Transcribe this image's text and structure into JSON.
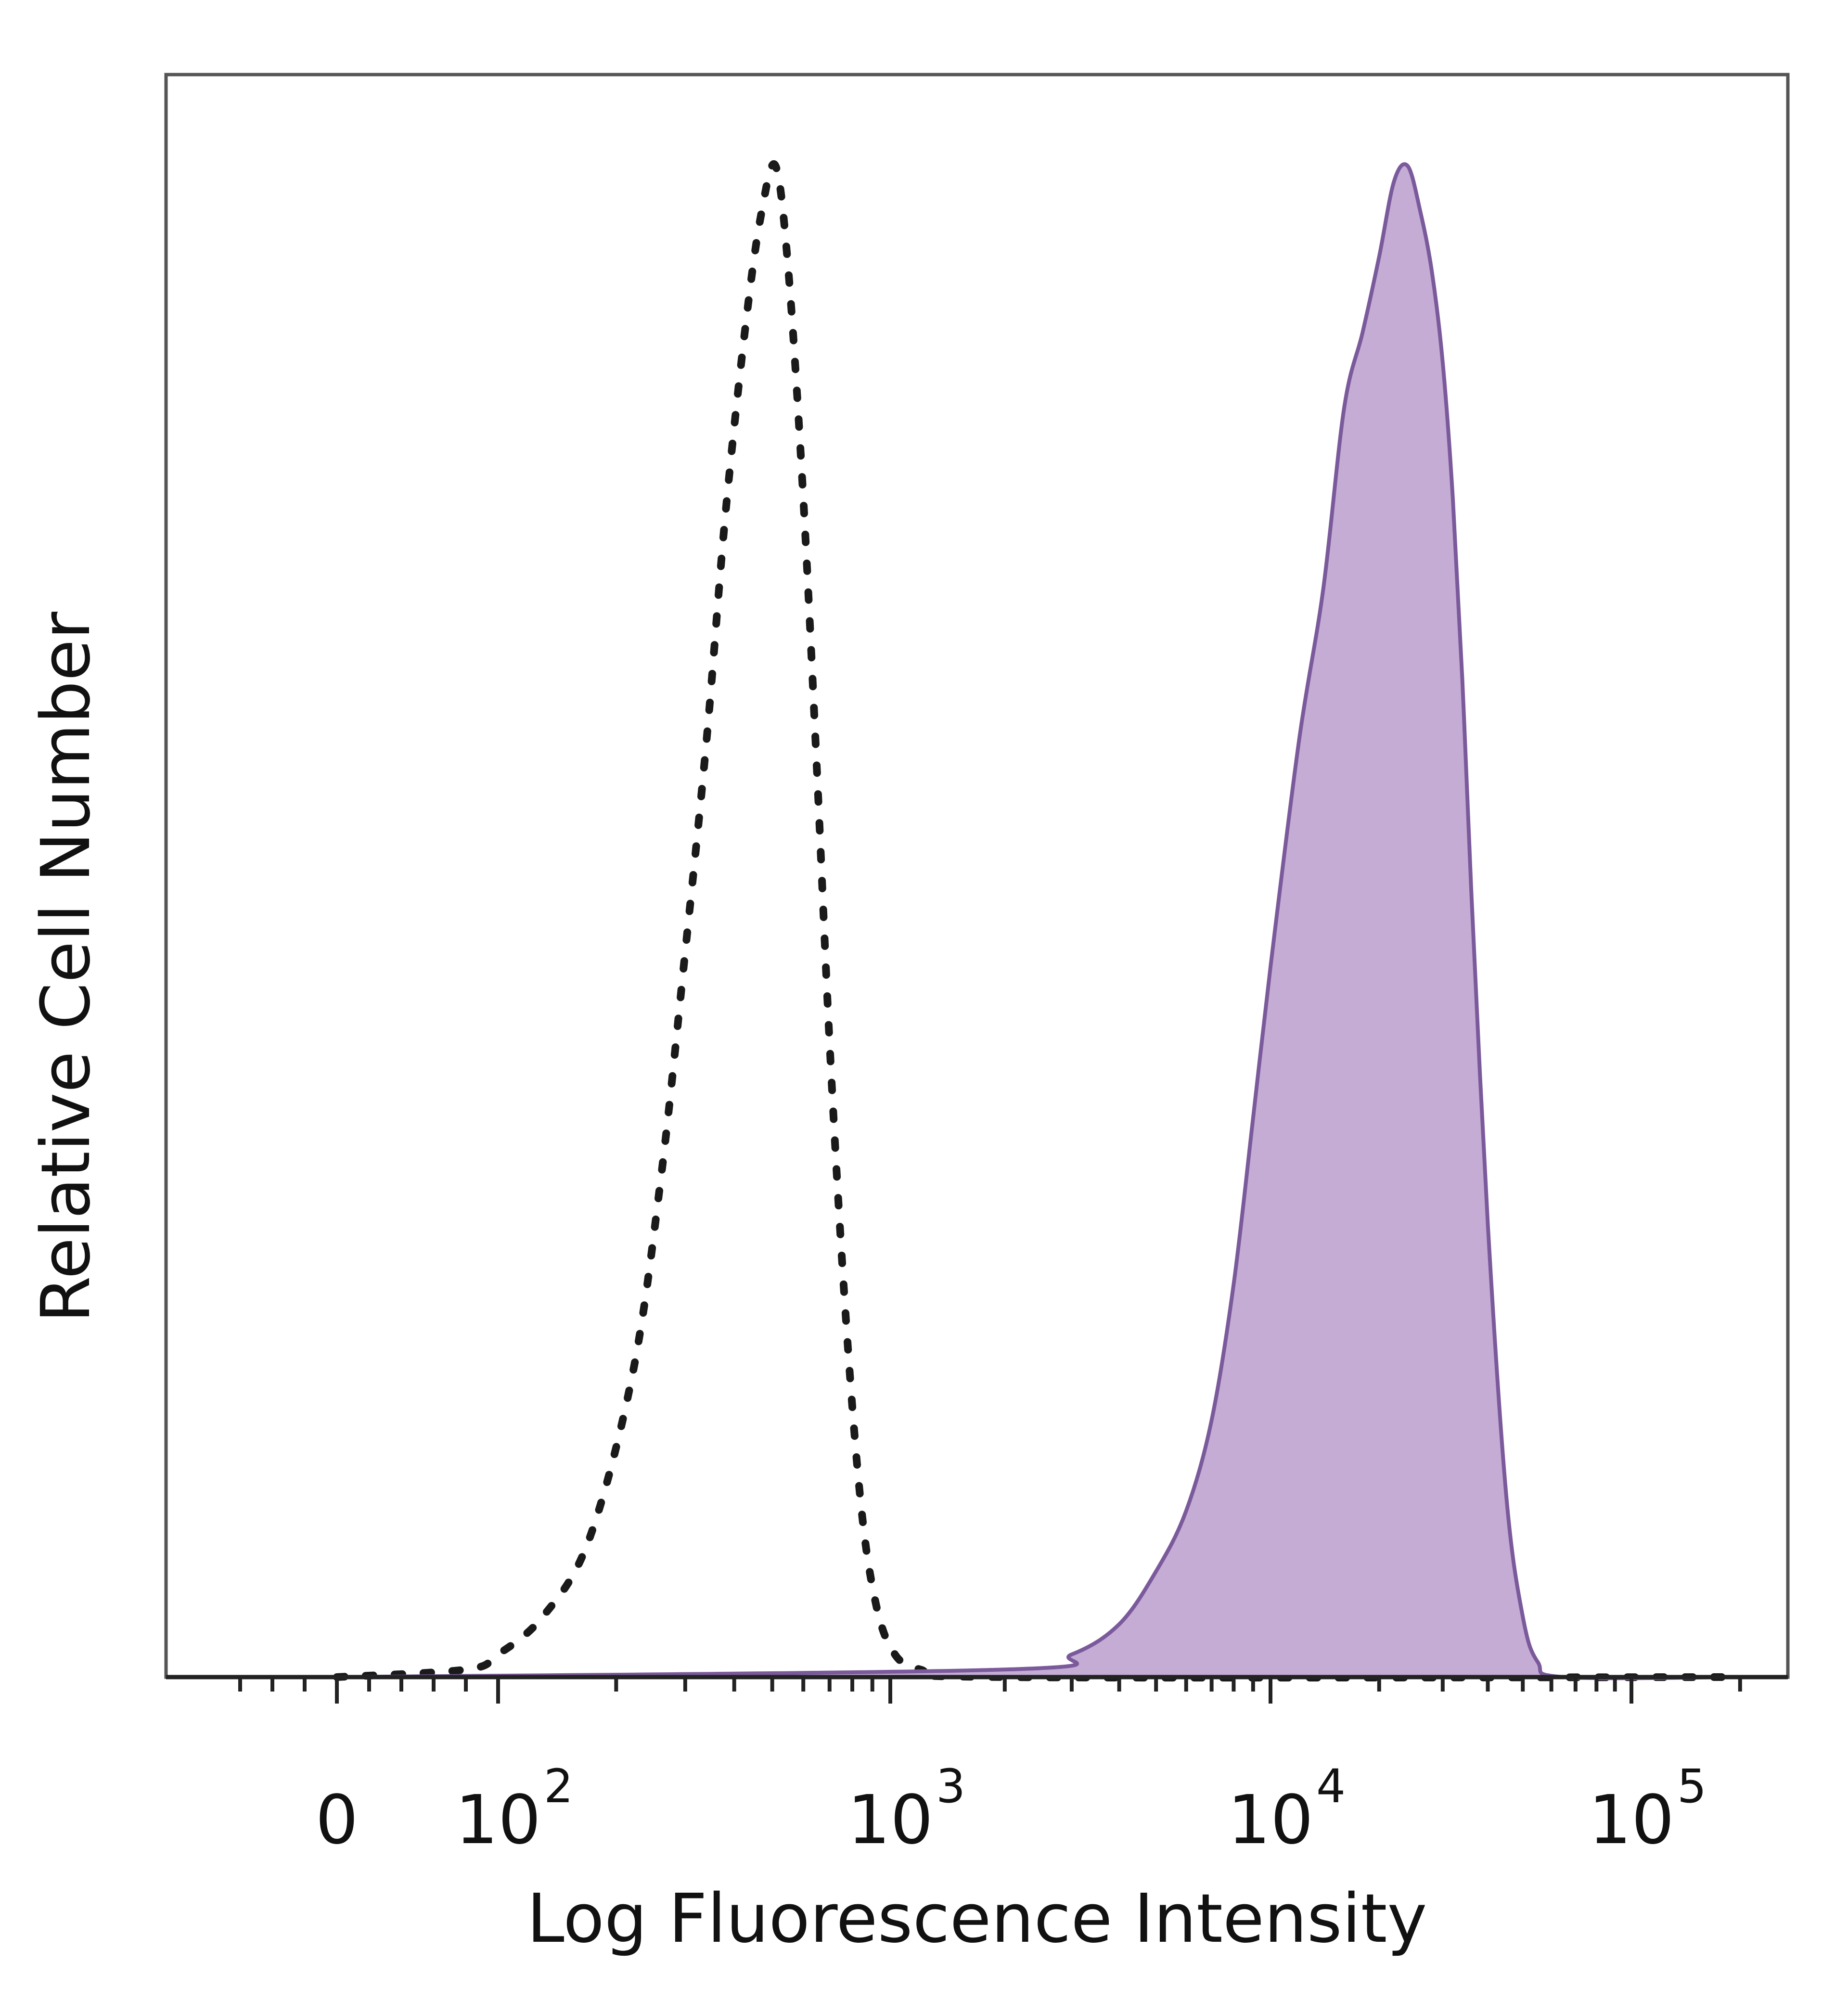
{
  "chart_data": {
    "type": "area",
    "xlabel": "Log Fluorescence Intensity",
    "ylabel": "Relative Cell Number",
    "x_scale": "biexponential",
    "x_tick_labels": [
      {
        "base": "0",
        "exp": ""
      },
      {
        "base": "10",
        "exp": "2"
      },
      {
        "base": "10",
        "exp": "3"
      },
      {
        "base": "10",
        "exp": "4"
      },
      {
        "base": "10",
        "exp": "5"
      }
    ],
    "ylim": [
      0,
      100
    ],
    "grid": false,
    "legend": "none",
    "series": [
      {
        "style": "dotted",
        "color": "#1a1a1a",
        "points": [
          {
            "x": "0",
            "y": 0
          },
          {
            "x": "80",
            "y": 0.5
          },
          {
            "x": "100",
            "y": 1.5
          },
          {
            "x": "130",
            "y": 4
          },
          {
            "x": "170",
            "y": 9
          },
          {
            "x": "220",
            "y": 20
          },
          {
            "x": "260",
            "y": 33
          },
          {
            "x": "300",
            "y": 48
          },
          {
            "x": "340",
            "y": 62
          },
          {
            "x": "380",
            "y": 77
          },
          {
            "x": "430",
            "y": 90
          },
          {
            "x": "470",
            "y": 97
          },
          {
            "x": "510",
            "y": 100
          },
          {
            "x": "550",
            "y": 93
          },
          {
            "x": "600",
            "y": 78
          },
          {
            "x": "650",
            "y": 60
          },
          {
            "x": "700",
            "y": 42
          },
          {
            "x": "760",
            "y": 26
          },
          {
            "x": "830",
            "y": 13
          },
          {
            "x": "900",
            "y": 6
          },
          {
            "x": "1000",
            "y": 2
          },
          {
            "x": "1200",
            "y": 0.5
          },
          {
            "x": "2000",
            "y": 0
          },
          {
            "x": "200000",
            "y": 0
          }
        ]
      },
      {
        "style": "filled",
        "color": "#7b5a9c",
        "fill": "#c4acd4",
        "points": [
          {
            "x": "0",
            "y": 0
          },
          {
            "x": "2000",
            "y": 0.5
          },
          {
            "x": "3000",
            "y": 1.5
          },
          {
            "x": "4000",
            "y": 3.5
          },
          {
            "x": "5000",
            "y": 7
          },
          {
            "x": "6000",
            "y": 11
          },
          {
            "x": "7000",
            "y": 17
          },
          {
            "x": "8000",
            "y": 26
          },
          {
            "x": "9000",
            "y": 37
          },
          {
            "x": "10000",
            "y": 47
          },
          {
            "x": "12000",
            "y": 62
          },
          {
            "x": "14000",
            "y": 72
          },
          {
            "x": "16000",
            "y": 84
          },
          {
            "x": "18000",
            "y": 89
          },
          {
            "x": "20000",
            "y": 94
          },
          {
            "x": "22000",
            "y": 99
          },
          {
            "x": "24000",
            "y": 100
          },
          {
            "x": "26000",
            "y": 97
          },
          {
            "x": "28000",
            "y": 93
          },
          {
            "x": "30000",
            "y": 87
          },
          {
            "x": "32000",
            "y": 78
          },
          {
            "x": "34000",
            "y": 66
          },
          {
            "x": "36000",
            "y": 52
          },
          {
            "x": "40000",
            "y": 30
          },
          {
            "x": "45000",
            "y": 12
          },
          {
            "x": "50000",
            "y": 4
          },
          {
            "x": "55000",
            "y": 1
          },
          {
            "x": "65000",
            "y": 0
          },
          {
            "x": "200000",
            "y": 0
          }
        ]
      }
    ]
  }
}
